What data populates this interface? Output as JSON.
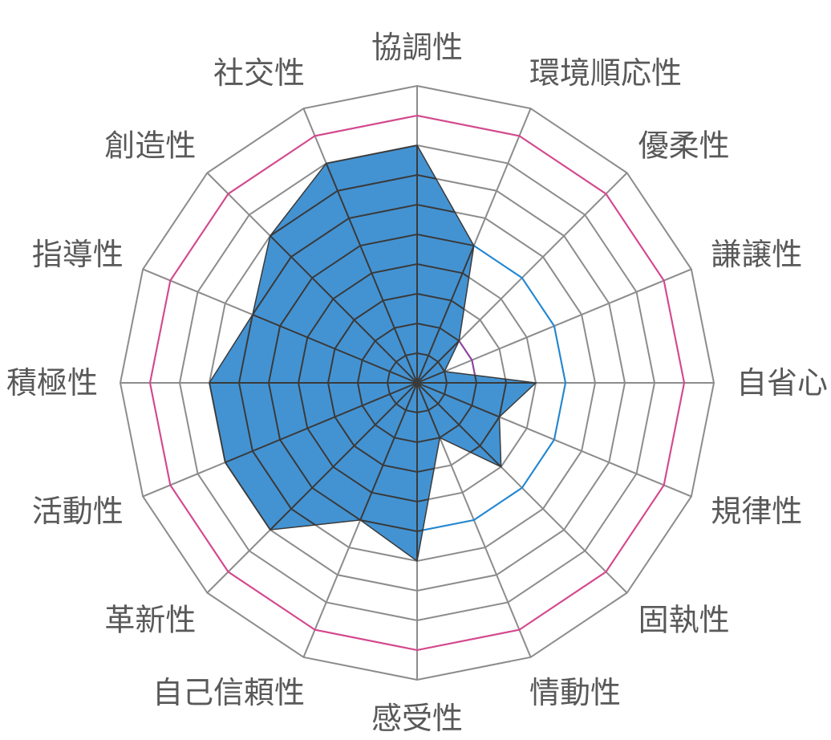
{
  "chart_data": {
    "type": "radar",
    "title": "",
    "axes": [
      "協調性",
      "環境順応性",
      "優柔性",
      "謙譲性",
      "自省心",
      "規律性",
      "固執性",
      "情動性",
      "感受性",
      "自己信頼性",
      "革新性",
      "活動性",
      "積極性",
      "指導性",
      "創造性",
      "社交性"
    ],
    "range": [
      0,
      10
    ],
    "grid_rings": 10,
    "series": [
      {
        "name": "",
        "values": [
          8,
          5,
          2,
          1,
          4,
          3,
          4,
          2,
          6,
          5,
          7,
          7,
          7,
          6,
          7,
          8
        ]
      }
    ],
    "reference_rings": [
      {
        "value": 9,
        "color": "#d9468f"
      },
      {
        "value": 5,
        "color": "#1e88d6"
      },
      {
        "value": 2,
        "color": "#8e3fa6"
      }
    ],
    "colors": {
      "fill": "#4393d3",
      "grid": "#8c8c8c",
      "outline": "#3a3a3a",
      "label": "#595959"
    }
  }
}
